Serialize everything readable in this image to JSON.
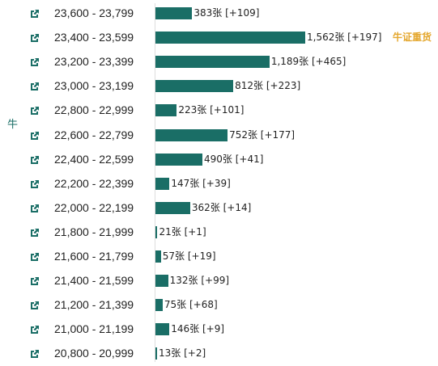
{
  "colors": {
    "bar": "#1a6e66",
    "accent": "#e4a72e",
    "text": "#222222"
  },
  "side_label": "牛",
  "annotation": "牛证重货",
  "link_icon": "external-link-icon",
  "unit": "张",
  "chart_data": {
    "type": "bar",
    "orientation": "horizontal",
    "categories": [
      "23,600 - 23,799",
      "23,400 - 23,599",
      "23,200 - 23,399",
      "23,000 - 23,199",
      "22,800 - 22,999",
      "22,600 - 22,799",
      "22,400 - 22,599",
      "22,200 - 22,399",
      "22,000 - 22,199",
      "21,800 - 21,999",
      "21,600 - 21,799",
      "21,400 - 21,599",
      "21,200 - 21,399",
      "21,000 - 21,199",
      "20,800 - 20,999"
    ],
    "values": [
      383,
      1562,
      1189,
      812,
      223,
      752,
      490,
      147,
      362,
      21,
      57,
      132,
      75,
      146,
      13
    ],
    "changes": [
      109,
      197,
      465,
      223,
      101,
      177,
      41,
      39,
      14,
      1,
      19,
      99,
      68,
      9,
      2
    ],
    "value_labels": [
      "383张 [+109]",
      "1,562张 [+197]",
      "1,189张 [+465]",
      "812张 [+223]",
      "223张 [+101]",
      "752张 [+177]",
      "490张 [+41]",
      "147张 [+39]",
      "362张 [+14]",
      "21张 [+1]",
      "57张 [+19]",
      "132张 [+99]",
      "75张 [+68]",
      "146张 [+9]",
      "13张 [+2]"
    ],
    "xlim": [
      0,
      1562
    ]
  }
}
